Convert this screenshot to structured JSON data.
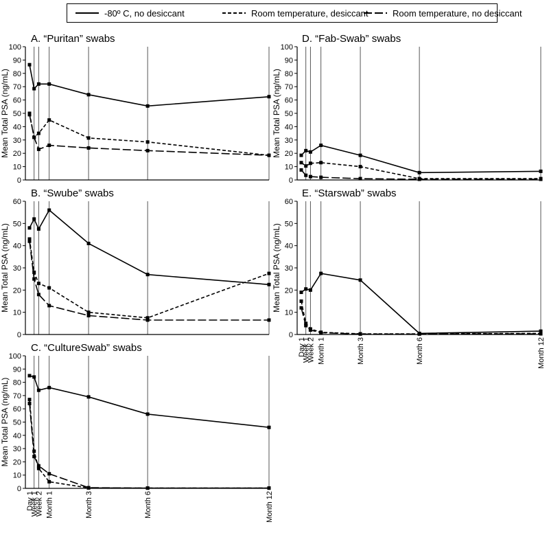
{
  "legend": {
    "items": [
      {
        "label": "-80º C, no desiccant",
        "style": "solid"
      },
      {
        "label": "Room temperature, desiccant",
        "style": "dotted"
      },
      {
        "label": "Room temperature, no desiccant",
        "style": "dashed"
      }
    ]
  },
  "chart_data": [
    {
      "type": "line",
      "title": "A. “Puritan” swabs",
      "ylabel": "Mean Total PSA (ng/mL)",
      "ylim": [
        0,
        100
      ],
      "yticks": [
        0,
        10,
        20,
        30,
        40,
        50,
        60,
        70,
        80,
        90,
        100
      ],
      "x": [
        0,
        1,
        2,
        3,
        4,
        7,
        14,
        30,
        90,
        180,
        365
      ],
      "series": [
        {
          "name": "-80º C, no desiccant",
          "style": "solid",
          "points": [
            [
              0,
              86.5
            ],
            [
              7,
              68.5
            ],
            [
              14,
              72
            ],
            [
              30,
              72
            ],
            [
              90,
              64
            ],
            [
              180,
              55.5
            ],
            [
              365,
              62.5
            ]
          ]
        },
        {
          "name": "Room temperature, desiccant",
          "style": "dotted",
          "points": [
            [
              0,
              50
            ],
            [
              7,
              32
            ],
            [
              14,
              35
            ],
            [
              30,
              45
            ],
            [
              90,
              31.5
            ],
            [
              180,
              28.5
            ],
            [
              365,
              18.5
            ]
          ]
        },
        {
          "name": "Room temperature, no desiccant",
          "style": "dashed",
          "points": [
            [
              0,
              49
            ],
            [
              7,
              32
            ],
            [
              14,
              23
            ],
            [
              30,
              26
            ],
            [
              90,
              24
            ],
            [
              180,
              22
            ],
            [
              365,
              18.5
            ]
          ]
        }
      ]
    },
    {
      "type": "line",
      "title": "B. “Swube” swabs",
      "ylabel": "Mean Total PSA (ng/mL)",
      "ylim": [
        0,
        60
      ],
      "yticks": [
        0,
        10,
        20,
        30,
        40,
        50,
        60
      ],
      "x": [
        0,
        1,
        2,
        3,
        4,
        7,
        14,
        30,
        90,
        180,
        365
      ],
      "series": [
        {
          "name": "-80º C, no desiccant",
          "style": "solid",
          "points": [
            [
              0,
              48
            ],
            [
              7,
              52
            ],
            [
              14,
              47.5
            ],
            [
              30,
              56
            ],
            [
              90,
              41
            ],
            [
              180,
              27
            ],
            [
              365,
              22.5
            ]
          ]
        },
        {
          "name": "Room temperature, desiccant",
          "style": "dotted",
          "points": [
            [
              0,
              43
            ],
            [
              7,
              28
            ],
            [
              14,
              23
            ],
            [
              30,
              21
            ],
            [
              90,
              10
            ],
            [
              180,
              7.5
            ],
            [
              365,
              27.5
            ]
          ]
        },
        {
          "name": "Room temperature, no desiccant",
          "style": "dashed",
          "points": [
            [
              0,
              42
            ],
            [
              7,
              25
            ],
            [
              14,
              18
            ],
            [
              30,
              13
            ],
            [
              90,
              8.5
            ],
            [
              180,
              6.5
            ],
            [
              365,
              6.5
            ]
          ]
        }
      ]
    },
    {
      "type": "line",
      "title": "C. “CultureSwab” swabs",
      "ylabel": "Mean Total PSA (ng/mL)",
      "ylim": [
        0,
        100
      ],
      "yticks": [
        0,
        10,
        20,
        30,
        40,
        50,
        60,
        70,
        80,
        90,
        100
      ],
      "x": [
        0,
        1,
        2,
        3,
        4,
        7,
        14,
        30,
        90,
        180,
        365
      ],
      "xticklabels": [
        "Day 1",
        "Week 1",
        "Week 2",
        "Month 1",
        "Month 3",
        "Month 6",
        "Month 12"
      ],
      "series": [
        {
          "name": "-80º C, no desiccant",
          "style": "solid",
          "points": [
            [
              0,
              85
            ],
            [
              7,
              84
            ],
            [
              14,
              74
            ],
            [
              30,
              76
            ],
            [
              90,
              69
            ],
            [
              180,
              56
            ],
            [
              365,
              46
            ]
          ]
        },
        {
          "name": "Room temperature, desiccant",
          "style": "dotted",
          "points": [
            [
              0,
              67
            ],
            [
              7,
              28
            ],
            [
              14,
              15
            ],
            [
              30,
              5
            ],
            [
              90,
              0.3
            ],
            [
              180,
              0.2
            ],
            [
              365,
              0.2
            ]
          ]
        },
        {
          "name": "Room temperature, no desiccant",
          "style": "dashed",
          "points": [
            [
              0,
              64
            ],
            [
              7,
              24
            ],
            [
              14,
              17
            ],
            [
              30,
              11
            ],
            [
              90,
              0.5
            ],
            [
              180,
              0.2
            ],
            [
              365,
              0.2
            ]
          ]
        }
      ]
    },
    {
      "type": "line",
      "title": "D. “Fab-Swab” swabs",
      "ylabel": "Mean Total PSA (ng/mL)",
      "ylim": [
        0,
        100
      ],
      "yticks": [
        0,
        10,
        20,
        30,
        40,
        50,
        60,
        70,
        80,
        90,
        100
      ],
      "x": [
        0,
        1,
        2,
        3,
        4,
        7,
        14,
        30,
        90,
        180,
        365
      ],
      "series": [
        {
          "name": "-80º C, no desiccant",
          "style": "solid",
          "points": [
            [
              0,
              18.5
            ],
            [
              7,
              22
            ],
            [
              14,
              21
            ],
            [
              30,
              26
            ],
            [
              90,
              18.5
            ],
            [
              180,
              5.5
            ],
            [
              365,
              6.5
            ]
          ]
        },
        {
          "name": "Room temperature, desiccant",
          "style": "dotted",
          "points": [
            [
              0,
              13
            ],
            [
              7,
              10.5
            ],
            [
              14,
              12.5
            ],
            [
              30,
              13
            ],
            [
              90,
              10
            ],
            [
              180,
              1
            ],
            [
              365,
              1
            ]
          ]
        },
        {
          "name": "Room temperature, no desiccant",
          "style": "dashed",
          "points": [
            [
              0,
              7.5
            ],
            [
              7,
              3.5
            ],
            [
              14,
              2.5
            ],
            [
              30,
              2
            ],
            [
              90,
              1
            ],
            [
              180,
              0.5
            ],
            [
              365,
              0.5
            ]
          ]
        }
      ]
    },
    {
      "type": "line",
      "title": "E. “Starswab” swabs",
      "ylabel": "Mean Total PSA (ng/mL)",
      "ylim": [
        0,
        60
      ],
      "yticks": [
        0,
        10,
        20,
        30,
        40,
        50,
        60
      ],
      "x": [
        0,
        1,
        2,
        3,
        4,
        7,
        14,
        30,
        90,
        180,
        365
      ],
      "xticklabels": [
        "Day 1",
        "Week 1",
        "Week 2",
        "Month 1",
        "Month 3",
        "Month 6",
        "Month 12"
      ],
      "series": [
        {
          "name": "-80º C, no desiccant",
          "style": "solid",
          "points": [
            [
              0,
              19
            ],
            [
              7,
              20.5
            ],
            [
              14,
              20
            ],
            [
              30,
              27.5
            ],
            [
              90,
              24.5
            ],
            [
              180,
              0.5
            ],
            [
              365,
              1.5
            ]
          ]
        },
        {
          "name": "Room temperature, desiccant",
          "style": "dotted",
          "points": [
            [
              0,
              15
            ],
            [
              7,
              5
            ],
            [
              14,
              2.5
            ],
            [
              30,
              1
            ],
            [
              90,
              0.3
            ],
            [
              180,
              0.3
            ],
            [
              365,
              0.5
            ]
          ]
        },
        {
          "name": "Room temperature, no desiccant",
          "style": "dashed",
          "points": [
            [
              0,
              12
            ],
            [
              7,
              4
            ],
            [
              14,
              2
            ],
            [
              30,
              0.8
            ],
            [
              90,
              0.2
            ],
            [
              180,
              0.2
            ],
            [
              365,
              0.3
            ]
          ]
        }
      ]
    }
  ]
}
